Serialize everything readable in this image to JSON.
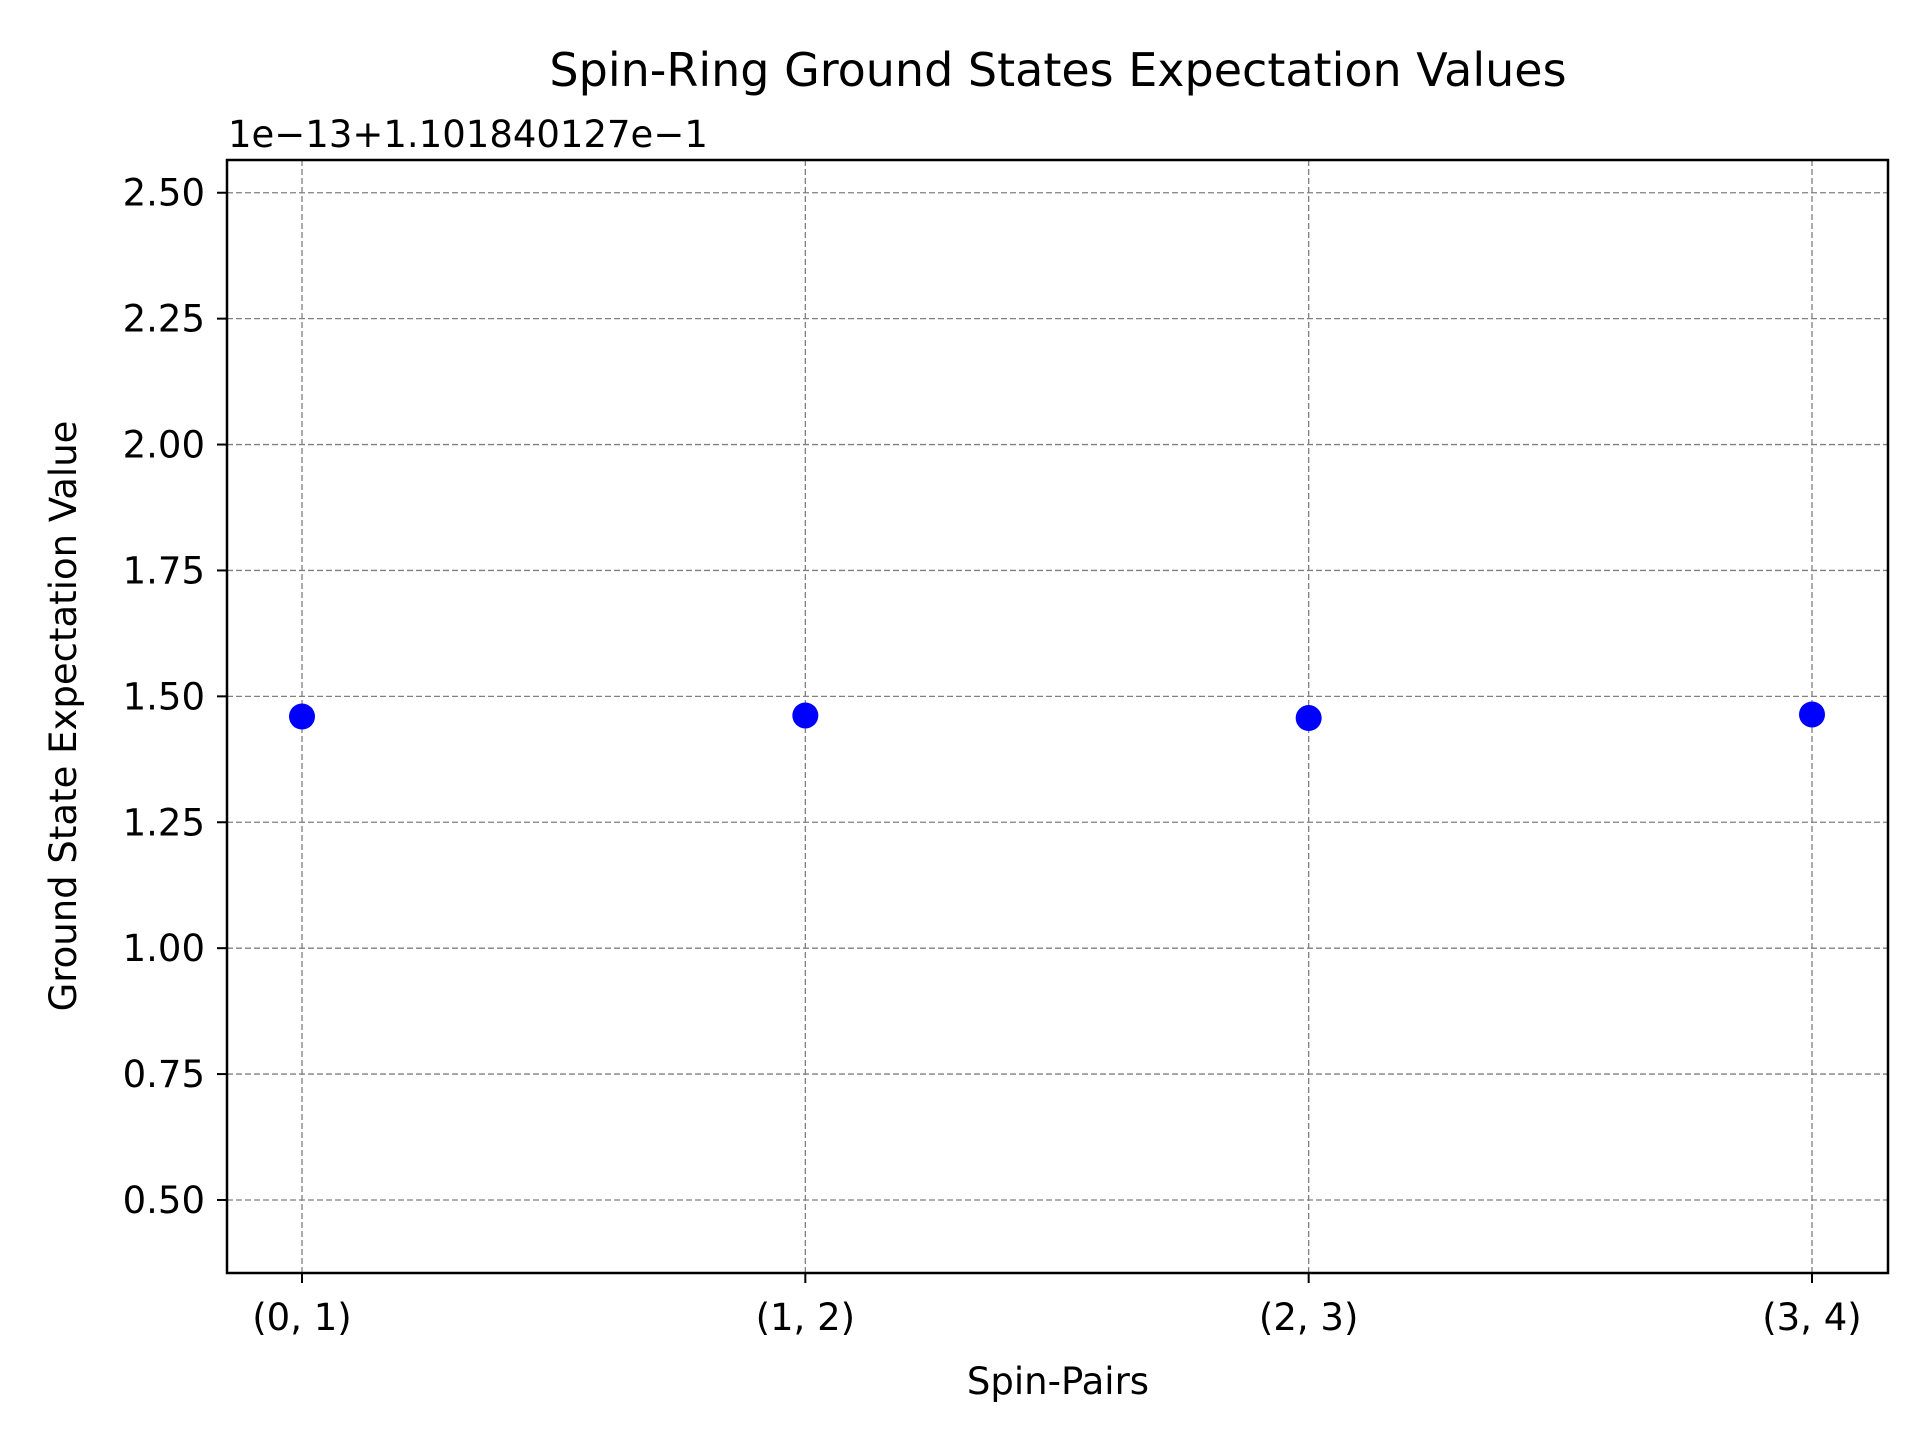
{
  "chart_data": {
    "type": "scatter",
    "title": "Spin-Ring Ground States Expectation Values",
    "offset_text": "1e−13+1.101840127e−1",
    "xlabel": "Spin-Pairs",
    "ylabel": "Ground State Expectation Value",
    "categories": [
      "(0, 1)",
      "(1, 2)",
      "(2, 3)",
      "(3, 4)"
    ],
    "series": [
      {
        "values": [
          1.46,
          1.462,
          1.457,
          1.464
        ],
        "color": "#0000ff"
      }
    ],
    "ylim": [
      0.355,
      2.565
    ],
    "yticks": [
      0.5,
      0.75,
      1.0,
      1.25,
      1.5,
      1.75,
      2.0,
      2.25,
      2.5
    ],
    "ytick_labels": [
      "0.50",
      "0.75",
      "1.00",
      "1.25",
      "1.50",
      "1.75",
      "2.00",
      "2.25",
      "2.50"
    ],
    "grid": true
  }
}
